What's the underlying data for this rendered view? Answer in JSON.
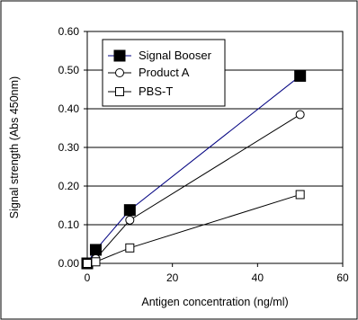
{
  "chart_data": {
    "type": "line",
    "title": "",
    "xlabel": "Antigen concentration (ng/ml)",
    "ylabel": "Signal strength (Abs 450nm)",
    "xlim": [
      0,
      60
    ],
    "ylim": [
      0,
      0.6
    ],
    "x_ticks": [
      "0",
      "20",
      "40",
      "60"
    ],
    "y_ticks": [
      "0.00",
      "0.10",
      "0.20",
      "0.30",
      "0.40",
      "0.50",
      "0.60"
    ],
    "grid": "horizontal",
    "legend_position": "top-left",
    "series": [
      {
        "name": "Signal Booser",
        "marker": "filled-square",
        "color": "#000080",
        "marker_color": "#000000",
        "points": [
          [
            0,
            0.0
          ],
          [
            2,
            0.035
          ],
          [
            10,
            0.138
          ],
          [
            50,
            0.485
          ]
        ]
      },
      {
        "name": "Product A",
        "marker": "open-circle",
        "color": "#000000",
        "marker_color": "#000000",
        "points": [
          [
            0,
            0.0
          ],
          [
            2,
            0.012
          ],
          [
            10,
            0.112
          ],
          [
            50,
            0.385
          ]
        ]
      },
      {
        "name": "PBS-T",
        "marker": "open-square",
        "color": "#000000",
        "marker_color": "#000000",
        "points": [
          [
            0,
            0.0
          ],
          [
            2,
            0.004
          ],
          [
            10,
            0.04
          ],
          [
            50,
            0.178
          ]
        ]
      }
    ]
  }
}
